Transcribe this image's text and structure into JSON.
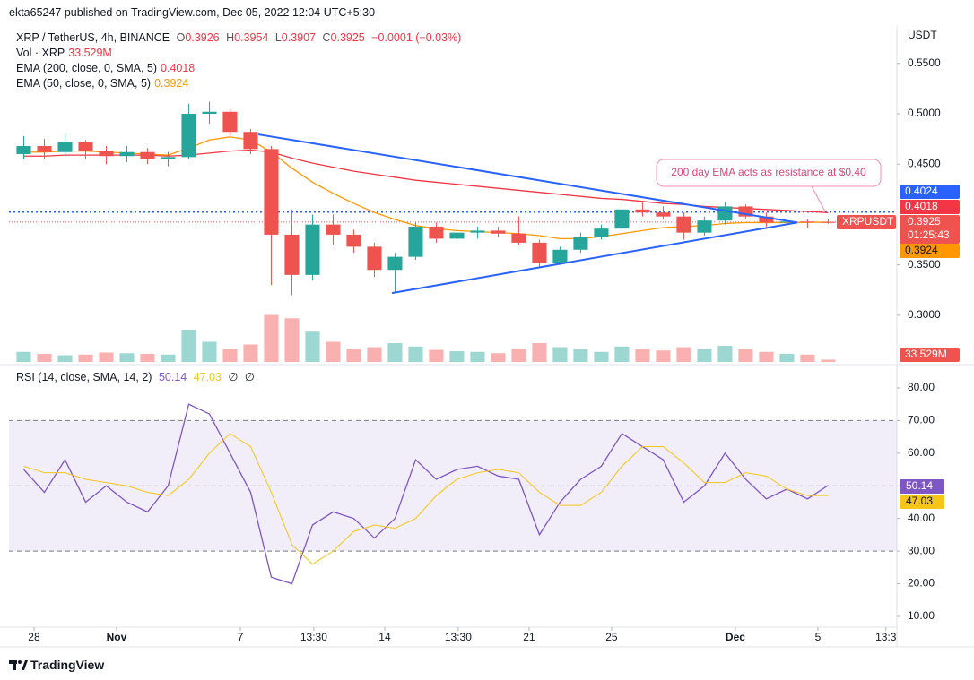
{
  "header": {
    "published": "ekta65247 published on TradingView.com, Dec 05, 2022 12:04 UTC+5:30",
    "brand": "TradingView"
  },
  "chart_data": [
    {
      "type": "candlestick",
      "title": "XRP / TetherUS, 4h, BINANCE",
      "ohlc_labels": [
        "O",
        "H",
        "L",
        "C"
      ],
      "change": "−0.0001 (−0.03%)",
      "open": [
        0.46,
        0.468,
        0.462,
        0.472,
        0.463,
        0.458,
        0.462,
        0.455,
        0.457,
        0.5,
        0.502,
        0.482,
        0.465,
        0.38,
        0.34,
        0.39,
        0.38,
        0.368,
        0.345,
        0.358,
        0.388,
        0.376,
        0.382,
        0.384,
        0.381,
        0.372,
        0.352,
        0.365,
        0.378,
        0.386,
        0.405,
        0.402,
        0.398,
        0.382,
        0.394,
        0.408,
        0.398,
        0.392,
        0.393,
        0.3926
      ],
      "high": [
        0.478,
        0.475,
        0.48,
        0.474,
        0.468,
        0.468,
        0.466,
        0.462,
        0.51,
        0.512,
        0.505,
        0.485,
        0.468,
        0.405,
        0.4,
        0.4,
        0.385,
        0.372,
        0.362,
        0.392,
        0.392,
        0.386,
        0.388,
        0.388,
        0.398,
        0.375,
        0.368,
        0.382,
        0.39,
        0.42,
        0.412,
        0.408,
        0.402,
        0.398,
        0.412,
        0.41,
        0.402,
        0.396,
        0.395,
        0.3954
      ],
      "low": [
        0.455,
        0.455,
        0.458,
        0.455,
        0.45,
        0.452,
        0.45,
        0.448,
        0.455,
        0.49,
        0.478,
        0.46,
        0.33,
        0.32,
        0.335,
        0.37,
        0.362,
        0.338,
        0.322,
        0.355,
        0.372,
        0.372,
        0.376,
        0.378,
        0.37,
        0.348,
        0.35,
        0.362,
        0.375,
        0.383,
        0.398,
        0.395,
        0.375,
        0.379,
        0.39,
        0.396,
        0.388,
        0.388,
        0.387,
        0.3907
      ],
      "close": [
        0.468,
        0.462,
        0.472,
        0.463,
        0.458,
        0.462,
        0.455,
        0.457,
        0.5,
        0.502,
        0.482,
        0.465,
        0.38,
        0.34,
        0.39,
        0.38,
        0.368,
        0.345,
        0.358,
        0.388,
        0.376,
        0.382,
        0.384,
        0.381,
        0.372,
        0.352,
        0.365,
        0.378,
        0.386,
        0.405,
        0.402,
        0.398,
        0.382,
        0.394,
        0.408,
        0.398,
        0.392,
        0.393,
        0.3926,
        0.3925
      ],
      "up_color": "#26a69a",
      "down_color": "#ef5350",
      "volume": {
        "name": "Vol · XRP",
        "value_label": "33.529M",
        "ylim": [
          0,
          800
        ],
        "values": [
          150,
          120,
          100,
          110,
          140,
          130,
          120,
          110,
          480,
          300,
          200,
          260,
          700,
          650,
          450,
          300,
          200,
          220,
          280,
          230,
          180,
          160,
          150,
          130,
          200,
          280,
          220,
          200,
          150,
          230,
          200,
          170,
          220,
          200,
          240,
          200,
          150,
          120,
          110,
          33.529
        ]
      },
      "series": [
        {
          "name": "EMA (200, close, 0, SMA, 5)",
          "color": "#f23645",
          "values": [
            0.458,
            0.458,
            0.459,
            0.459,
            0.459,
            0.459,
            0.459,
            0.458,
            0.459,
            0.461,
            0.463,
            0.464,
            0.462,
            0.456,
            0.451,
            0.447,
            0.443,
            0.44,
            0.437,
            0.434,
            0.432,
            0.43,
            0.428,
            0.426,
            0.424,
            0.422,
            0.42,
            0.418,
            0.416,
            0.415,
            0.413,
            0.411,
            0.41,
            0.408,
            0.407,
            0.406,
            0.405,
            0.404,
            0.403,
            0.4018
          ]
        },
        {
          "name": "EMA (50, close, 0, SMA, 5)",
          "color": "#ff9800",
          "values": [
            0.462,
            0.462,
            0.463,
            0.463,
            0.462,
            0.461,
            0.46,
            0.459,
            0.466,
            0.474,
            0.477,
            0.474,
            0.462,
            0.446,
            0.432,
            0.421,
            0.411,
            0.402,
            0.395,
            0.389,
            0.386,
            0.384,
            0.383,
            0.382,
            0.381,
            0.379,
            0.376,
            0.376,
            0.378,
            0.381,
            0.384,
            0.387,
            0.388,
            0.389,
            0.391,
            0.392,
            0.392,
            0.392,
            0.3922,
            0.3924
          ]
        }
      ],
      "hline": {
        "value": 0.4024,
        "color": "#2962ff"
      },
      "trendlines": [
        {
          "x": [
            11.87,
            38.0
          ],
          "y": [
            0.4795,
            0.392
          ]
        },
        {
          "x": [
            18.35,
            38.0
          ],
          "y": [
            0.322,
            0.392
          ]
        }
      ],
      "trendline_color": "#2962ff",
      "annotation": "200 day EMA acts as resistance at $0.40",
      "symbol": "XRPUSDT",
      "countdown": "01:25:43",
      "axis_unit": "USDT",
      "xlim": [
        -0.217,
        42.83
      ],
      "ylim": [
        0.2527,
        0.5863
      ],
      "yticks": [
        {
          "value": 0.55,
          "label": "0.5500"
        },
        {
          "value": 0.5,
          "label": "0.5000"
        },
        {
          "value": 0.45,
          "label": "0.4500"
        },
        {
          "value": 0.35,
          "label": "0.3500"
        },
        {
          "value": 0.3,
          "label": "0.3000"
        }
      ]
    },
    {
      "type": "line",
      "title": "RSI (14, close, SMA, 14, 2)",
      "flags": [
        "∅",
        "∅"
      ],
      "series": [
        {
          "color": "#7e57c2",
          "values": [
            55,
            48,
            58,
            45,
            50,
            45,
            42,
            50,
            75,
            72,
            60,
            48,
            22,
            20,
            38,
            42,
            40,
            34,
            40,
            58,
            52,
            55,
            56,
            53,
            52,
            35,
            45,
            52,
            56,
            66,
            62,
            58,
            45,
            50,
            60,
            52,
            46,
            49,
            46,
            50.14
          ]
        },
        {
          "color": "#f5c518",
          "values": [
            56,
            54,
            54,
            52,
            51,
            50,
            48,
            47,
            52,
            60,
            66,
            62,
            48,
            32,
            26,
            30,
            36,
            38,
            37,
            40,
            47,
            52,
            54,
            55,
            54,
            48,
            44,
            44,
            48,
            56,
            62,
            62,
            57,
            51,
            51,
            54,
            53,
            49,
            47,
            47.03
          ]
        }
      ],
      "band": [
        30,
        70
      ],
      "midline": 50,
      "xlim": [
        -0.217,
        42.83
      ],
      "ylim": [
        6.7,
        86.3
      ],
      "yticks": [
        {
          "value": 80,
          "label": "80.00"
        },
        {
          "value": 70,
          "label": "70.00"
        },
        {
          "value": 60,
          "label": "60.00"
        },
        {
          "value": 50,
          "label": "50.00"
        },
        {
          "value": 40,
          "label": "40.00"
        },
        {
          "value": 30,
          "label": "30.00"
        },
        {
          "value": 20,
          "label": "20.00"
        },
        {
          "value": 10,
          "label": "10.00"
        }
      ],
      "xticks": [
        {
          "value": 1,
          "label": "28"
        },
        {
          "value": 5,
          "label": "Nov"
        },
        {
          "value": 11,
          "label": "7"
        },
        {
          "value": 14.5625,
          "label": "13:30"
        },
        {
          "value": 18,
          "label": "14"
        },
        {
          "value": 21.5625,
          "label": "13:30"
        },
        {
          "value": 25,
          "label": "21"
        },
        {
          "value": 29,
          "label": "25"
        },
        {
          "value": 35,
          "label": "Dec"
        },
        {
          "value": 39,
          "label": "5"
        },
        {
          "value": 42.3,
          "label": "13:3"
        }
      ]
    }
  ]
}
